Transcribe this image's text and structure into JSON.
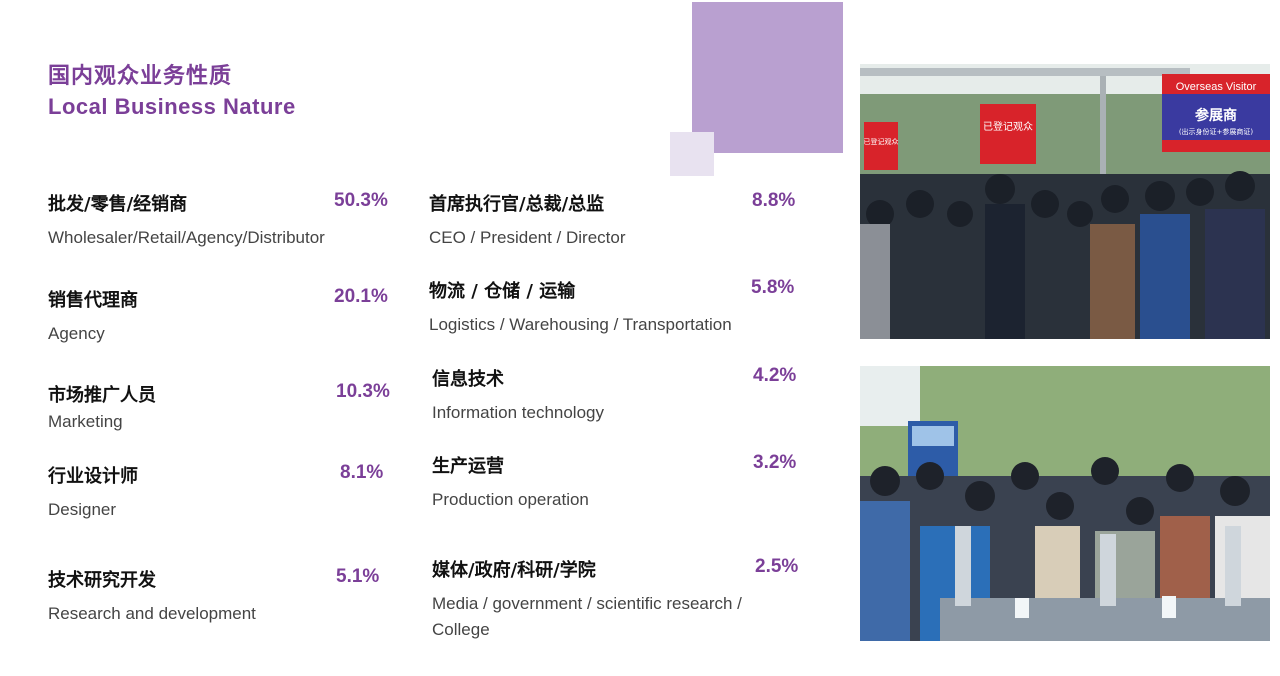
{
  "title": {
    "cn": "国内观众业务性质",
    "en": "Local Business Nature"
  },
  "accent_color": "#7b3f98",
  "items": [
    {
      "cn": "批发/零售/经销商",
      "en": "Wholesaler/Retail/Agency/Distributor",
      "pct": "50.3%"
    },
    {
      "cn": "销售代理商",
      "en": "Agency",
      "pct": "20.1%"
    },
    {
      "cn": "市场推广人员",
      "en": "Marketing",
      "pct": "10.3%"
    },
    {
      "cn": "行业设计师",
      "en": "Designer",
      "pct": "8.1%"
    },
    {
      "cn": "技术研究开发",
      "en": "Research and development",
      "pct": "5.1%"
    },
    {
      "cn": "首席执行官/总裁/总监",
      "en": "CEO / President / Director",
      "pct": "8.8%"
    },
    {
      "cn": "物流 / 仓储 / 运输",
      "en": "Logistics / Warehousing / Transportation",
      "pct": "5.8%"
    },
    {
      "cn": "信息技术",
      "en": "Information technology",
      "pct": "4.2%"
    },
    {
      "cn": "生产运营",
      "en": "Production operation",
      "pct": "3.2%"
    },
    {
      "cn": "媒体/政府/科研/学院",
      "en": "Media / government / scientific research / College",
      "pct": "2.5%"
    }
  ],
  "photos": {
    "top": {
      "sign_overseas": "Overseas Visitor",
      "sign_exhibitor": "参展商",
      "sign_exhibitor_sub": "(出示身份证+参展商证)",
      "sign_registered": "已登记观众",
      "sign_left": "已登记观众"
    },
    "bottom": {}
  }
}
